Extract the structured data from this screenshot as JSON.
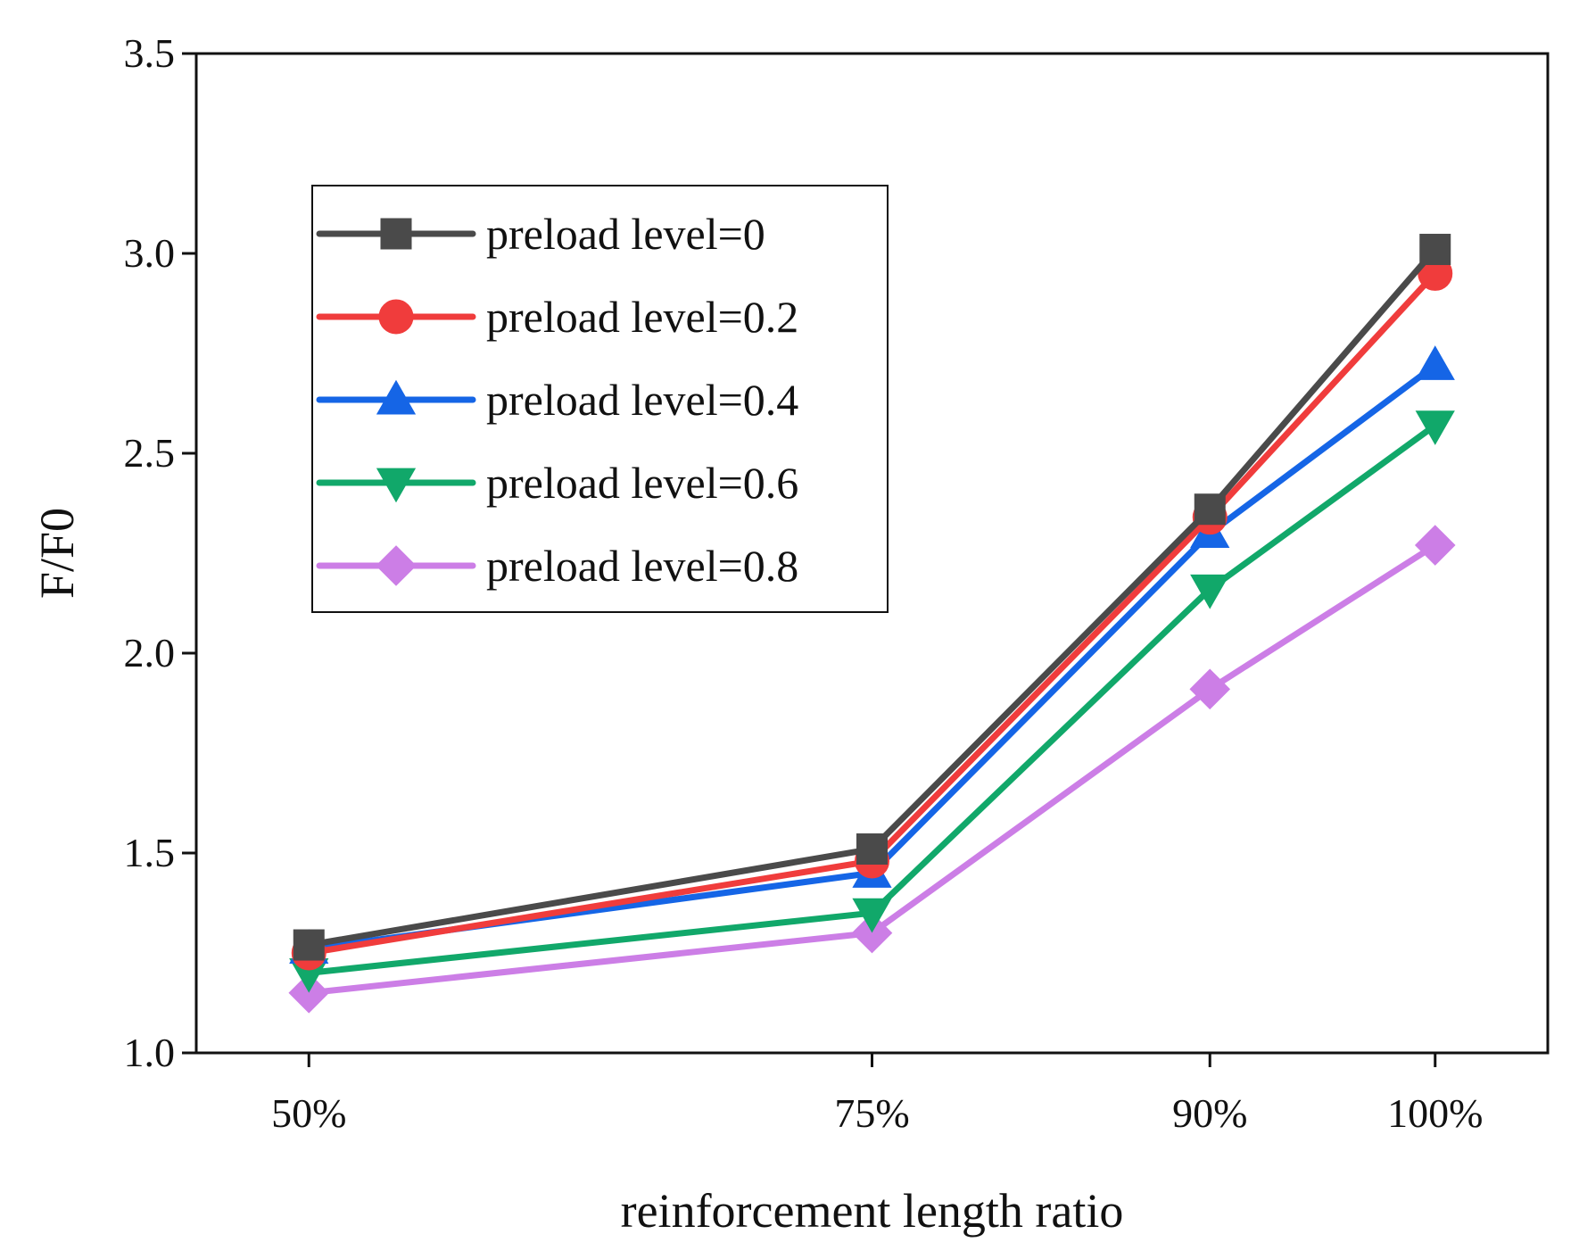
{
  "chart_data": {
    "type": "line",
    "title": "",
    "xlabel": "reinforcement length ratio",
    "ylabel": "F/F0",
    "categories": [
      "50%",
      "75%",
      "90%",
      "100%"
    ],
    "x": [
      50,
      75,
      90,
      100
    ],
    "xlim": [
      45,
      105
    ],
    "ylim": [
      1.0,
      3.5
    ],
    "yticks": [
      "1.0",
      "1.5",
      "2.0",
      "2.5",
      "3.0",
      "3.5"
    ],
    "ytick_values": [
      1.0,
      1.5,
      2.0,
      2.5,
      3.0,
      3.5
    ],
    "grid": false,
    "legend_position": "upper-left",
    "series": [
      {
        "name": "preload level=0",
        "values": [
          1.27,
          1.51,
          2.36,
          3.01
        ],
        "color": "#4a4a4a",
        "marker": "square"
      },
      {
        "name": "preload level=0.2",
        "values": [
          1.25,
          1.48,
          2.34,
          2.95
        ],
        "color": "#f03c3c",
        "marker": "circle"
      },
      {
        "name": "preload level=0.4",
        "values": [
          1.26,
          1.45,
          2.3,
          2.72
        ],
        "color": "#1565e6",
        "marker": "triangle-up"
      },
      {
        "name": "preload level=0.6",
        "values": [
          1.2,
          1.35,
          2.16,
          2.57
        ],
        "color": "#11a86a",
        "marker": "triangle-down"
      },
      {
        "name": "preload level=0.8",
        "values": [
          1.15,
          1.3,
          1.91,
          2.27
        ],
        "color": "#cc7ee6",
        "marker": "diamond"
      }
    ]
  }
}
